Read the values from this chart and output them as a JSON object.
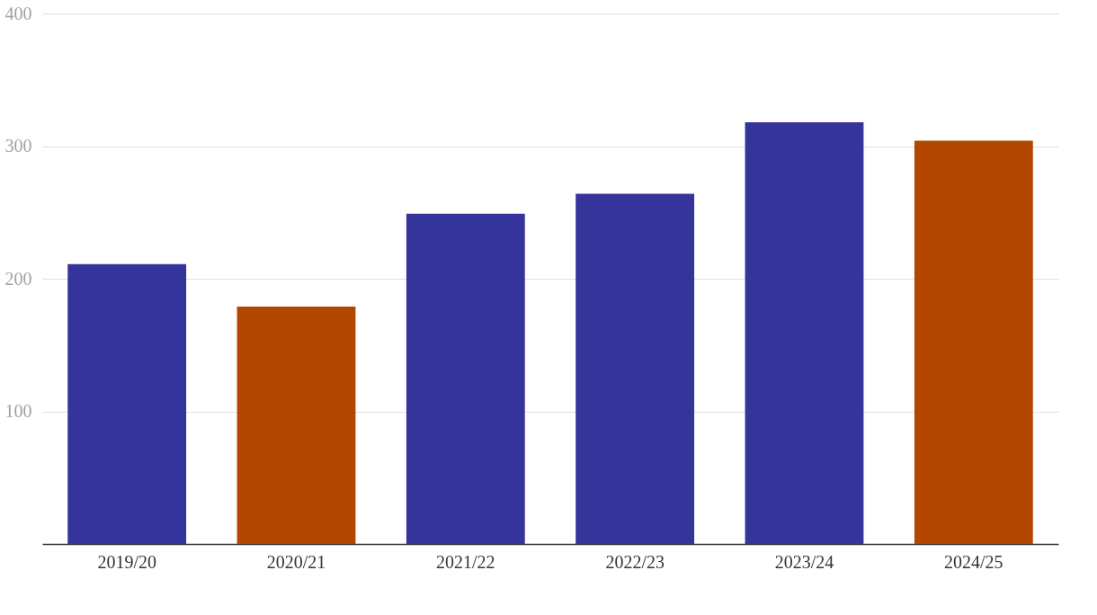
{
  "chart_data": {
    "type": "bar",
    "categories": [
      "2019/20",
      "2020/21",
      "2021/22",
      "2022/23",
      "2023/24",
      "2024/25"
    ],
    "values": [
      211,
      179,
      249,
      264,
      318,
      304
    ],
    "colors": [
      "#35349a",
      "#b34700",
      "#35349a",
      "#35349a",
      "#35349a",
      "#b34700"
    ],
    "ylim": [
      0,
      400
    ],
    "yticks": [
      100,
      200,
      300,
      400
    ],
    "grid": "y"
  }
}
